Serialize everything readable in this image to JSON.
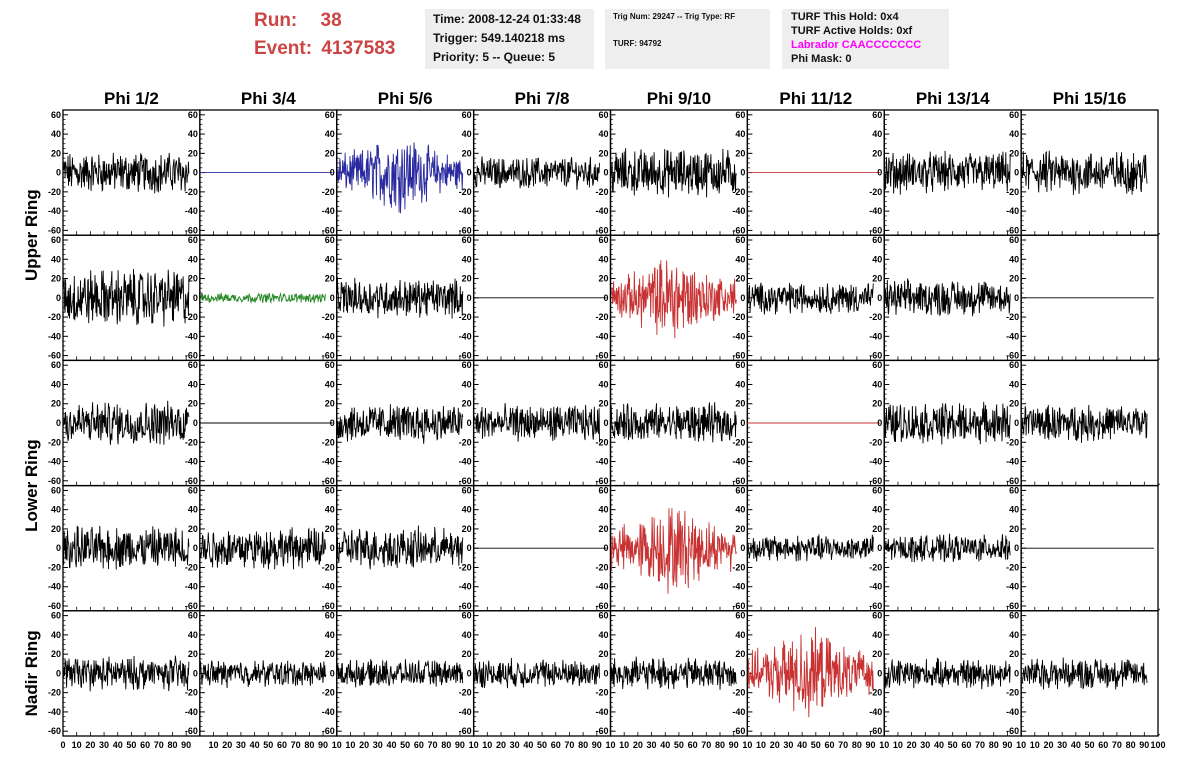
{
  "header": {
    "run_label": "Run:",
    "run_value": "38",
    "event_label": "Event:",
    "event_value": "4137583",
    "time_line": "Time: 2008-12-24 01:33:48",
    "trigger_line": "Trigger: 549.140218 ms",
    "priority_line": "Priority: 5 -- Queue: 5",
    "trig_line": "Trig Num: 29247 -- Trig Type: RF",
    "turf_line": "TURF: 94792",
    "turf_hold_line": "TURF This Hold: 0x4",
    "turf_active_line": "TURF Active Holds: 0xf",
    "labrador_line": "Labrador CAACCCCCCC",
    "phi_mask_line": "Phi Mask: 0"
  },
  "colors": {
    "run_text": "#cc4444",
    "labrador_text": "#ff00ff",
    "black_trace": "#000000",
    "blue_trace": "#2a2aa0",
    "green_trace": "#2a8a2a",
    "red_trace": "#c83232"
  },
  "chart_data": {
    "type": "line",
    "columns": [
      "Phi 1/2",
      "Phi 3/4",
      "Phi 5/6",
      "Phi 7/8",
      "Phi 9/10",
      "Phi 11/12",
      "Phi 13/14",
      "Phi 15/16"
    ],
    "ring_labels": [
      {
        "label": "Upper Ring",
        "rows": [
          0,
          1
        ]
      },
      {
        "label": "Lower Ring",
        "rows": [
          2,
          3
        ]
      },
      {
        "label": "Nadir Ring",
        "rows": [
          4,
          4
        ]
      }
    ],
    "ylim": [
      -65,
      65
    ],
    "yticks": [
      -60,
      -40,
      -20,
      0,
      20,
      40,
      60
    ],
    "xlim": [
      0,
      100
    ],
    "xticks": [
      0,
      10,
      20,
      30,
      40,
      50,
      60,
      70,
      80,
      90,
      100
    ],
    "x_tick_labels_first": [
      "0",
      "10",
      "20",
      "30",
      "40",
      "50",
      "60",
      "70",
      "80",
      "90"
    ],
    "x_tick_labels_other": [
      "10",
      "20",
      "30",
      "40",
      "50",
      "60",
      "70",
      "80",
      "90",
      "10"
    ],
    "x_tick_labels_last": [
      "10",
      "20",
      "30",
      "40",
      "50",
      "60",
      "70",
      "80",
      "90",
      "100"
    ],
    "panels": [
      [
        {
          "color": "black",
          "amp": 17,
          "flat": false
        },
        {
          "color": "blue",
          "amp": 0,
          "flat": true
        },
        {
          "color": "blue",
          "amp": 24,
          "flat": false
        },
        {
          "color": "black",
          "amp": 13,
          "flat": false
        },
        {
          "color": "black",
          "amp": 20,
          "flat": false
        },
        {
          "color": "red",
          "amp": 0,
          "flat": true
        },
        {
          "color": "black",
          "amp": 17,
          "flat": false
        },
        {
          "color": "black",
          "amp": 18,
          "flat": false
        }
      ],
      [
        {
          "color": "black",
          "amp": 24,
          "flat": false
        },
        {
          "color": "green",
          "amp": 4,
          "flat": false
        },
        {
          "color": "black",
          "amp": 16,
          "flat": false
        },
        {
          "color": "black",
          "amp": 0,
          "flat": true
        },
        {
          "color": "red",
          "amp": 26,
          "flat": false
        },
        {
          "color": "black",
          "amp": 13,
          "flat": false
        },
        {
          "color": "black",
          "amp": 15,
          "flat": false
        },
        {
          "color": "black",
          "amp": 0,
          "flat": true
        }
      ],
      [
        {
          "color": "black",
          "amp": 18,
          "flat": false
        },
        {
          "color": "black",
          "amp": 0,
          "flat": true
        },
        {
          "color": "black",
          "amp": 16,
          "flat": false
        },
        {
          "color": "black",
          "amp": 15,
          "flat": false
        },
        {
          "color": "black",
          "amp": 16,
          "flat": false
        },
        {
          "color": "red",
          "amp": 0,
          "flat": true
        },
        {
          "color": "black",
          "amp": 17,
          "flat": false
        },
        {
          "color": "black",
          "amp": 15,
          "flat": false
        }
      ],
      [
        {
          "color": "black",
          "amp": 18,
          "flat": false
        },
        {
          "color": "black",
          "amp": 17,
          "flat": false
        },
        {
          "color": "black",
          "amp": 17,
          "flat": false
        },
        {
          "color": "black",
          "amp": 0,
          "flat": true
        },
        {
          "color": "red",
          "amp": 27,
          "flat": false
        },
        {
          "color": "black",
          "amp": 11,
          "flat": false
        },
        {
          "color": "black",
          "amp": 11,
          "flat": false
        },
        {
          "color": "black",
          "amp": 0,
          "flat": true
        }
      ],
      [
        {
          "color": "black",
          "amp": 14,
          "flat": false
        },
        {
          "color": "black",
          "amp": 11,
          "flat": false
        },
        {
          "color": "black",
          "amp": 11,
          "flat": false
        },
        {
          "color": "black",
          "amp": 12,
          "flat": false
        },
        {
          "color": "black",
          "amp": 13,
          "flat": false
        },
        {
          "color": "red",
          "amp": 27,
          "flat": false
        },
        {
          "color": "black",
          "amp": 12,
          "flat": false
        },
        {
          "color": "black",
          "amp": 13,
          "flat": false
        }
      ]
    ]
  }
}
